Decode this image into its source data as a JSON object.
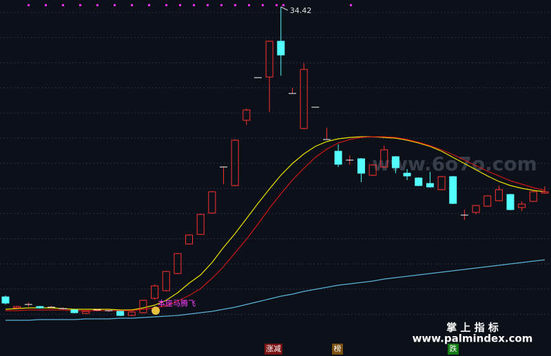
{
  "chart_data": {
    "type": "candlestick",
    "ylim": [
      9.02,
      34.92
    ],
    "grid": true,
    "max_label": "34.42",
    "signal_label": "本座马腾飞",
    "up_color": "#ff3232",
    "down_color": "#54ffff",
    "open": [
      13.32,
      12.52,
      12.77,
      12.62,
      12.57,
      12.47,
      12.37,
      12.12,
      12.37,
      12.32,
      12.27,
      11.97,
      12.17,
      13.22,
      13.77,
      15.02,
      17.17,
      17.87,
      19.42,
      22.77,
      21.42,
      26.17,
      29.27,
      29.32,
      31.92,
      28.12,
      25.57,
      27.12,
      24.77,
      23.92,
      23.27,
      23.37,
      22.17,
      22.77,
      23.52,
      22.32,
      21.97,
      21.57,
      21.12,
      22.07,
      19.27,
      19.47,
      19.92,
      20.32,
      20.77,
      19.82,
      20.27,
      20.87
    ],
    "high": [
      13.42,
      12.67,
      12.92,
      12.67,
      12.67,
      12.57,
      12.42,
      12.32,
      12.47,
      12.42,
      12.32,
      12.27,
      13.12,
      14.22,
      15.22,
      16.52,
      17.87,
      19.37,
      21.02,
      22.77,
      24.77,
      27.02,
      29.27,
      31.97,
      34.42,
      28.52,
      30.32,
      27.12,
      25.62,
      24.42,
      23.62,
      23.42,
      22.97,
      24.32,
      23.57,
      22.62,
      22.02,
      22.42,
      22.12,
      22.12,
      19.67,
      20.02,
      20.72,
      21.42,
      20.82,
      20.27,
      21.02,
      21.37
    ],
    "low": [
      12.77,
      12.47,
      12.62,
      12.47,
      12.47,
      12.37,
      12.12,
      12.07,
      12.27,
      12.22,
      11.92,
      11.92,
      12.12,
      13.12,
      13.72,
      14.97,
      17.12,
      17.82,
      19.37,
      21.52,
      21.37,
      25.82,
      29.27,
      26.77,
      29.42,
      28.12,
      25.52,
      27.12,
      24.77,
      22.77,
      22.92,
      21.67,
      22.12,
      22.72,
      22.32,
      21.82,
      21.37,
      21.27,
      21.07,
      20.07,
      18.92,
      19.32,
      19.87,
      20.27,
      19.62,
      19.57,
      20.22,
      20.82
    ],
    "close": [
      12.87,
      12.62,
      12.77,
      12.52,
      12.57,
      12.47,
      12.17,
      12.27,
      12.37,
      12.32,
      11.97,
      12.22,
      13.07,
      14.12,
      15.17,
      16.47,
      17.82,
      19.32,
      20.97,
      22.77,
      24.72,
      26.92,
      29.27,
      31.92,
      30.92,
      28.12,
      29.87,
      27.12,
      24.77,
      22.97,
      23.27,
      22.32,
      22.92,
      24.02,
      22.72,
      22.12,
      21.42,
      21.32,
      22.07,
      20.12,
      19.27,
      19.97,
      20.67,
      21.12,
      19.67,
      20.07,
      20.97,
      20.97
    ],
    "series": [
      {
        "color": "#f2e600",
        "values": [
          12.42,
          12.47,
          12.52,
          12.52,
          12.52,
          12.47,
          12.42,
          12.42,
          12.42,
          12.42,
          12.37,
          12.37,
          12.52,
          12.72,
          13.07,
          13.62,
          14.32,
          14.92,
          15.82,
          16.92,
          17.92,
          19.02,
          20.12,
          21.17,
          22.17,
          23.02,
          23.72,
          24.27,
          24.62,
          24.82,
          24.92,
          24.97,
          24.97,
          24.92,
          24.87,
          24.72,
          24.52,
          24.27,
          23.92,
          23.47,
          23.02,
          22.57,
          22.12,
          21.72,
          21.42,
          21.22,
          21.07,
          20.97
        ]
      },
      {
        "color": "#d01818",
        "values": [
          12.32,
          12.32,
          12.37,
          12.37,
          12.37,
          12.37,
          12.32,
          12.32,
          12.32,
          12.32,
          12.32,
          12.32,
          12.42,
          12.52,
          12.67,
          13.02,
          13.42,
          13.92,
          14.67,
          15.52,
          16.52,
          17.52,
          18.62,
          19.77,
          20.82,
          21.82,
          22.67,
          23.47,
          24.07,
          24.52,
          24.77,
          24.92,
          24.97,
          24.97,
          24.92,
          24.77,
          24.57,
          24.32,
          24.02,
          23.67,
          23.27,
          22.87,
          22.47,
          22.12,
          21.77,
          21.52,
          21.27,
          21.07
        ]
      },
      {
        "color": "#5ab4dc",
        "values": [
          11.62,
          11.62,
          11.62,
          11.67,
          11.67,
          11.67,
          11.67,
          11.72,
          11.72,
          11.72,
          11.77,
          11.77,
          11.82,
          11.87,
          11.92,
          11.97,
          12.07,
          12.17,
          12.27,
          12.42,
          12.57,
          12.77,
          12.97,
          13.17,
          13.37,
          13.52,
          13.72,
          13.87,
          14.02,
          14.17,
          14.27,
          14.37,
          14.47,
          14.62,
          14.72,
          14.82,
          14.92,
          15.02,
          15.12,
          15.22,
          15.32,
          15.42,
          15.52,
          15.62,
          15.72,
          15.82,
          15.92,
          16.02
        ]
      }
    ]
  },
  "watermark": "www.6o7o.com",
  "brand": {
    "name": "掌 上 指 标",
    "url": "www.palmindex.com"
  },
  "tabs": [
    "涨减",
    "榜",
    "跌"
  ]
}
